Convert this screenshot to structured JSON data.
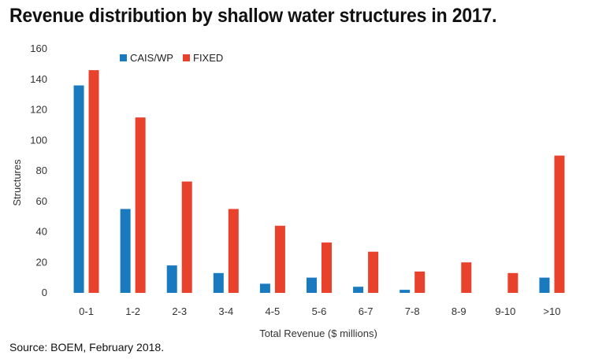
{
  "header": {
    "title": "Revenue distribution by shallow water structures in 2017."
  },
  "footer": {
    "source": "Source: BOEM, February 2018."
  },
  "chart_data": {
    "type": "bar",
    "title": "Revenue distribution by shallow water structures in 2017.",
    "xlabel": "Total Revenue ($ millions)",
    "ylabel": "Structures",
    "ylim": [
      0,
      160
    ],
    "yticks": [
      0,
      20,
      40,
      60,
      80,
      100,
      120,
      140,
      160
    ],
    "grid": false,
    "legend_position": "top-left",
    "categories": [
      "0-1",
      "1-2",
      "2-3",
      "3-4",
      "4-5",
      "5-6",
      "6-7",
      "7-8",
      "8-9",
      "9-10",
      ">10"
    ],
    "series": [
      {
        "name": "CAIS/WP",
        "color": "#1a7abf",
        "values": [
          136,
          55,
          18,
          13,
          6,
          10,
          4,
          2,
          0,
          0,
          10
        ]
      },
      {
        "name": "FIXED",
        "color": "#e8412c",
        "values": [
          146,
          115,
          73,
          55,
          44,
          33,
          27,
          14,
          20,
          13,
          90
        ]
      }
    ]
  }
}
